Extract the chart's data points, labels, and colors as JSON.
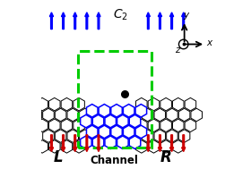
{
  "bg_color": "#ffffff",
  "hex_black_ec": "#000000",
  "hex_blue_ec": "#0000ff",
  "arrow_up_color": "#0000ff",
  "arrow_down_color": "#cc0000",
  "green_color": "#00cc00",
  "label_L": "L",
  "label_R": "R",
  "label_Channel": "Channel",
  "label_C2": "$\\mathit{C}_2$",
  "dot_color": "#000000",
  "r_hex": 0.042
}
